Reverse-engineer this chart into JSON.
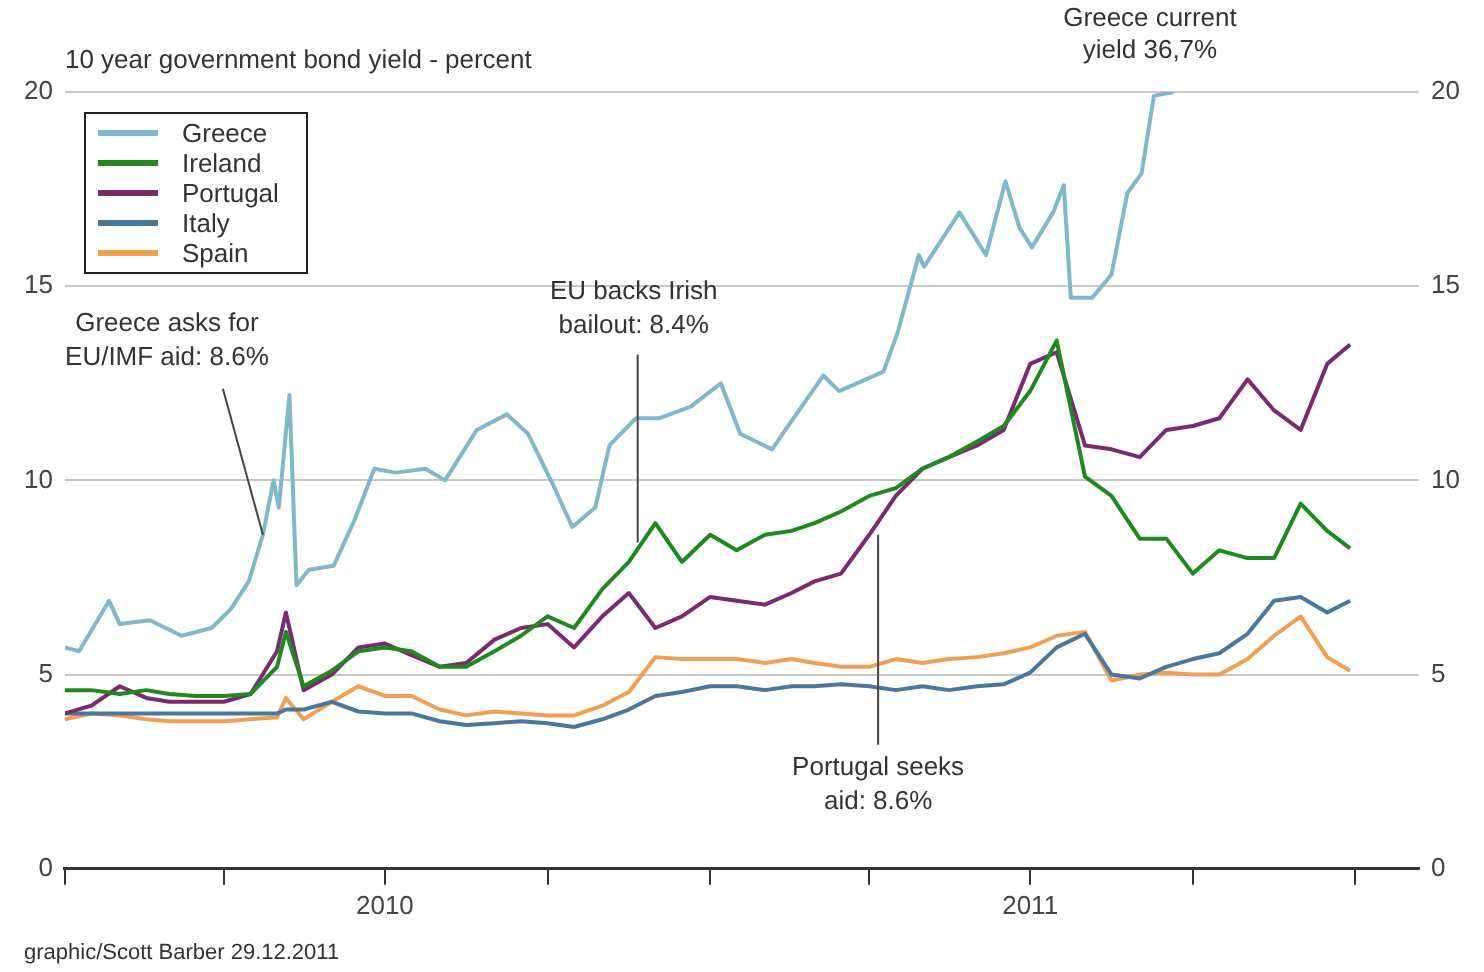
{
  "chart_data": {
    "type": "line",
    "subtitle": "10 year government bond yield - percent",
    "annotations": [
      "Greece current yield 36,7%",
      "graphic/Scott Barber 29.12.2011",
      {
        "text": "Greece asks for EU/IMF aid: 8.6%",
        "x": "2010-04-23",
        "y": 8.6
      },
      {
        "text": "EU backs Irish bailout: 8.4%",
        "x": "2010-11-21",
        "y": 8.4
      },
      {
        "text": "Portugal seeks aid: 8.6%",
        "x": "2011-04-06",
        "y": 8.6
      }
    ],
    "x": [
      "2010-01-01",
      "2010-01-16",
      "2010-02-01",
      "2010-02-16",
      "2010-03-01",
      "2010-03-16",
      "2010-04-01",
      "2010-04-16",
      "2010-05-01",
      "2010-05-06",
      "2010-05-16",
      "2010-06-01",
      "2010-06-16",
      "2010-07-01",
      "2010-07-16",
      "2010-08-01",
      "2010-08-16",
      "2010-09-01",
      "2010-09-16",
      "2010-10-01",
      "2010-10-16",
      "2010-11-01",
      "2010-11-16",
      "2010-12-01",
      "2010-12-16",
      "2011-01-01",
      "2011-01-16",
      "2011-02-01",
      "2011-02-16",
      "2011-03-01",
      "2011-03-16",
      "2011-04-01",
      "2011-04-16",
      "2011-05-01",
      "2011-05-16",
      "2011-06-01",
      "2011-06-16",
      "2011-07-01",
      "2011-07-16",
      "2011-08-01",
      "2011-08-16",
      "2011-09-01",
      "2011-09-16",
      "2011-10-01",
      "2011-10-16",
      "2011-11-01",
      "2011-11-16",
      "2011-12-01",
      "2011-12-16",
      "2011-12-29"
    ],
    "series": [
      {
        "name": "Greece",
        "color": "#7fb8cc",
        "x": [
          "2010-01-01",
          "2010-01-09",
          "2010-01-26",
          "2010-02-01",
          "2010-02-18",
          "2010-03-08",
          "2010-03-25",
          "2010-04-05",
          "2010-04-15",
          "2010-04-23",
          "2010-04-29",
          "2010-05-02",
          "2010-05-08",
          "2010-05-12",
          "2010-05-19",
          "2010-06-02",
          "2010-06-14",
          "2010-06-25",
          "2010-07-07",
          "2010-07-24",
          "2010-08-04",
          "2010-08-22",
          "2010-09-08",
          "2010-09-20",
          "2010-10-04",
          "2010-10-15",
          "2010-10-28",
          "2010-11-05",
          "2010-11-20",
          "2010-12-03",
          "2010-12-21",
          "2011-01-07",
          "2011-01-18",
          "2011-02-05",
          "2011-02-14",
          "2011-03-06",
          "2011-03-15",
          "2011-04-09",
          "2011-04-17",
          "2011-04-29",
          "2011-05-02",
          "2011-05-22",
          "2011-06-06",
          "2011-06-17",
          "2011-06-25",
          "2011-07-02",
          "2011-07-14",
          "2011-07-20",
          "2011-07-24",
          "2011-08-05",
          "2011-08-16",
          "2011-08-25",
          "2011-09-02",
          "2011-09-09",
          "2011-09-20"
        ],
        "values": [
          5.7,
          5.6,
          6.9,
          6.3,
          6.4,
          6.0,
          6.2,
          6.7,
          7.4,
          8.6,
          10.0,
          9.3,
          12.2,
          7.3,
          7.7,
          7.8,
          9.0,
          10.3,
          10.2,
          10.3,
          10.0,
          11.3,
          11.7,
          11.2,
          9.9,
          8.8,
          9.3,
          10.9,
          11.6,
          11.6,
          11.9,
          12.5,
          11.2,
          10.8,
          11.4,
          12.7,
          12.3,
          12.8,
          13.8,
          15.8,
          15.5,
          16.9,
          15.8,
          17.7,
          16.5,
          16.0,
          16.9,
          17.6,
          14.7,
          14.7,
          15.3,
          17.4,
          17.9,
          19.9,
          20
        ]
      },
      {
        "name": "Ireland",
        "color": "#1e8a1e",
        "values": [
          4.6,
          4.6,
          4.5,
          4.6,
          4.5,
          4.45,
          4.45,
          4.5,
          5.2,
          6.1,
          4.7,
          5.1,
          5.6,
          5.7,
          5.6,
          5.2,
          5.2,
          5.6,
          6.0,
          6.5,
          6.2,
          7.2,
          7.9,
          8.9,
          7.9,
          8.6,
          8.2,
          8.6,
          8.7,
          8.9,
          9.2,
          9.6,
          9.8,
          10.3,
          10.6,
          11.0,
          11.4,
          12.3,
          13.6,
          10.1,
          9.6,
          8.5,
          8.5,
          7.6,
          8.2,
          8.0,
          8.0,
          9.4,
          8.7,
          8.25
        ]
      },
      {
        "name": "Portugal",
        "color": "#7a2a6e",
        "values": [
          4.0,
          4.2,
          4.7,
          4.4,
          4.3,
          4.3,
          4.3,
          4.5,
          5.6,
          6.6,
          4.6,
          5.0,
          5.7,
          5.8,
          5.5,
          5.2,
          5.3,
          5.9,
          6.2,
          6.3,
          5.7,
          6.5,
          7.1,
          6.2,
          6.5,
          7.0,
          6.9,
          6.8,
          7.1,
          7.4,
          7.6,
          8.6,
          9.6,
          10.3,
          10.6,
          10.9,
          11.3,
          13.0,
          13.3,
          10.9,
          10.8,
          10.6,
          11.3,
          11.4,
          11.6,
          12.6,
          11.8,
          11.3,
          13.0,
          13.5
        ]
      },
      {
        "name": "Italy",
        "color": "#4a77a0",
        "values": [
          4.0,
          4.0,
          4.0,
          4.0,
          4.0,
          4.0,
          4.0,
          4.0,
          4.0,
          4.1,
          4.1,
          4.3,
          4.05,
          4.0,
          4.0,
          3.8,
          3.7,
          3.75,
          3.8,
          3.75,
          3.65,
          3.85,
          4.1,
          4.45,
          4.55,
          4.7,
          4.7,
          4.6,
          4.7,
          4.7,
          4.75,
          4.7,
          4.6,
          4.7,
          4.6,
          4.7,
          4.75,
          5.05,
          5.7,
          6.05,
          5.0,
          4.9,
          5.2,
          5.4,
          5.55,
          6.05,
          6.9,
          7.0,
          6.6,
          6.9
        ]
      },
      {
        "name": "Spain",
        "color": "#f0a050",
        "values": [
          3.85,
          4.0,
          3.95,
          3.85,
          3.8,
          3.8,
          3.8,
          3.85,
          3.9,
          4.4,
          3.85,
          4.3,
          4.7,
          4.45,
          4.45,
          4.1,
          3.95,
          4.05,
          4.0,
          3.95,
          3.95,
          4.2,
          4.55,
          5.45,
          5.4,
          5.4,
          5.4,
          5.3,
          5.4,
          5.3,
          5.2,
          5.2,
          5.4,
          5.3,
          5.4,
          5.45,
          5.55,
          5.7,
          6.0,
          6.1,
          4.85,
          5.0,
          5.05,
          5.0,
          5.0,
          5.4,
          6.0,
          6.5,
          5.45,
          5.1
        ]
      }
    ],
    "xlim": [
      "2010-01-01",
      "2012-02-06"
    ],
    "xticks": [
      {
        "value": "2010-01-01",
        "label": null
      },
      {
        "value": "2010-04-01",
        "label": null
      },
      {
        "value": "2010-07-01",
        "label": "2010"
      },
      {
        "value": "2010-10-01",
        "label": null
      },
      {
        "value": "2011-01-01",
        "label": null
      },
      {
        "value": "2011-04-01",
        "label": null
      },
      {
        "value": "2011-07-01",
        "label": "2011"
      },
      {
        "value": "2011-10-01",
        "label": null
      },
      {
        "value": "2012-01-01",
        "label": null
      }
    ],
    "ylim": [
      0,
      20
    ],
    "yticks": [
      0,
      5,
      10,
      15,
      20
    ],
    "y2lim": [
      0,
      20
    ],
    "y2ticks": [
      0,
      5,
      10,
      15,
      20
    ],
    "grid": "y",
    "legend": "top left",
    "marker": "none",
    "line_style": "solid"
  }
}
